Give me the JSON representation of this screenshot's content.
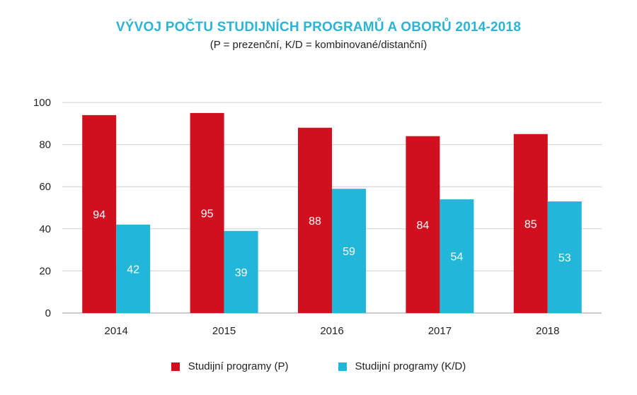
{
  "chart_data": {
    "type": "bar",
    "title": "VÝVOJ POČTU STUDIJNÍCH PROGRAMŮ A OBORŮ 2014-2018",
    "subtitle": "(P = prezenční, K/D = kombinované/distanční)",
    "categories": [
      "2014",
      "2015",
      "2016",
      "2017",
      "2018"
    ],
    "series": [
      {
        "name": "Studijní programy (P)",
        "values": [
          94,
          95,
          88,
          84,
          85
        ],
        "color": "#d0101f"
      },
      {
        "name": "Studijní programy (K/D)",
        "values": [
          42,
          39,
          59,
          54,
          53
        ],
        "color": "#22b7d9"
      }
    ],
    "ylim": [
      0,
      100
    ],
    "yticks": [
      "0",
      "20",
      "40",
      "60",
      "80",
      "100"
    ],
    "grid": true,
    "legend_position": "bottom-center",
    "xlabel": "",
    "ylabel": ""
  }
}
